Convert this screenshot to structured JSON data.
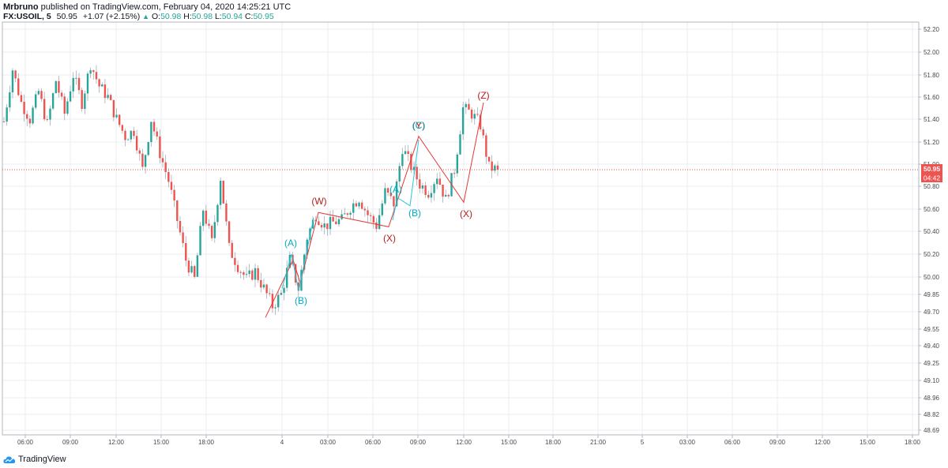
{
  "header": {
    "author": "Mrbruno",
    "published_text": "published on TradingView.com, February 04, 2020 14:25:21 UTC",
    "symbol": "FX:USOIL, 5",
    "last_price": "50.95",
    "change": "+1.07 (+2.15%)",
    "open_label": "O:",
    "open_value": "50.98",
    "high_label": "H:",
    "high_value": "50.98",
    "low_label": "L:",
    "low_value": "50.94",
    "close_label": "C:",
    "close_value": "50.95",
    "up_arrow_icon": "triangle-up-icon"
  },
  "price_tag": {
    "price": "50.95",
    "countdown": "04:42"
  },
  "footer": {
    "brand": "TradingView",
    "logo_icon": "tradingview-cloud-icon"
  },
  "colors": {
    "up": "#26a69a",
    "down": "#ef5350",
    "grid": "#e9ecf2",
    "wave_red": "#e53935",
    "wave_cyan": "#26c6da",
    "label_red": "#b71c1c",
    "label_cyan": "#00acc1"
  },
  "chart_data": {
    "type": "candlestick",
    "y_axis_ticks": [
      "52.20",
      "52.00",
      "51.80",
      "51.60",
      "51.40",
      "51.20",
      "51.00",
      "50.80",
      "50.60",
      "50.40",
      "50.20",
      "50.00",
      "49.85",
      "49.70",
      "49.55",
      "49.40",
      "49.25",
      "49.10",
      "48.96",
      "48.82",
      "48.69"
    ],
    "x_axis_ticks": [
      "06:00",
      "09:00",
      "12:00",
      "15:00",
      "18:00",
      "4",
      "03:00",
      "06:00",
      "09:00",
      "12:00",
      "15:00",
      "18:00",
      "21:00",
      "5",
      "03:00",
      "06:00",
      "09:00",
      "12:00",
      "15:00",
      "18:00"
    ],
    "current_price": 50.95,
    "price_path": [
      51.38,
      51.85,
      51.55,
      51.4,
      51.65,
      51.35,
      51.75,
      51.45,
      51.8,
      51.55,
      51.9,
      51.7,
      51.6,
      51.4,
      51.25,
      51.3,
      50.95,
      51.4,
      51.1,
      50.85,
      50.5,
      50.15,
      49.98,
      50.6,
      50.3,
      50.88,
      50.25,
      50.1,
      49.98,
      50.05,
      49.9,
      49.75,
      49.85,
      50.15,
      49.9,
      50.35,
      50.55,
      50.45,
      50.48,
      50.5,
      50.62,
      50.7,
      50.55,
      50.45,
      50.75,
      50.65,
      51.15,
      50.98,
      50.82,
      50.75,
      50.9,
      50.68,
      50.95,
      51.5,
      51.45,
      51.35,
      50.97,
      50.95
    ],
    "wave_lines": [
      {
        "name": "red-impulse",
        "color": "red",
        "points": [
          [
            0,
            49.65
          ],
          [
            0,
            50.15
          ],
          [
            1,
            49.95
          ],
          [
            2,
            50.57
          ],
          [
            3,
            50.44
          ],
          [
            4,
            51.25
          ],
          [
            5,
            50.66
          ],
          [
            6,
            51.55
          ]
        ]
      },
      {
        "name": "cyan-first",
        "color": "cyan",
        "points": [
          [
            0,
            49.9
          ],
          [
            1,
            50.2
          ],
          [
            2,
            49.88
          ],
          [
            3,
            50.52
          ]
        ]
      },
      {
        "name": "cyan-second",
        "color": "cyan",
        "points": [
          [
            0,
            50.5
          ],
          [
            1,
            50.7
          ],
          [
            2,
            50.63
          ],
          [
            3,
            51.22
          ]
        ]
      }
    ],
    "wave_labels": [
      {
        "text": "(A)",
        "color": "cyan"
      },
      {
        "text": "(B)",
        "color": "cyan"
      },
      {
        "text": "(W)",
        "color": "red"
      },
      {
        "text": "(X)",
        "color": "red"
      },
      {
        "text": "(A)",
        "color": "cyan"
      },
      {
        "text": "(B)",
        "color": "cyan"
      },
      {
        "text": "(Y)",
        "color": "red"
      },
      {
        "text": "(C)",
        "color": "cyan"
      },
      {
        "text": "(X)",
        "color": "red"
      },
      {
        "text": "(Z)",
        "color": "red"
      }
    ]
  }
}
